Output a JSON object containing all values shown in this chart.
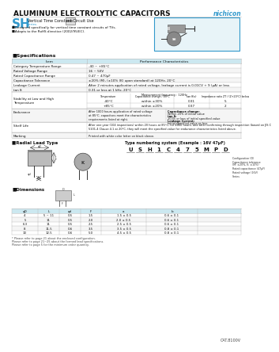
{
  "title": "ALUMINUM ELECTROLYTIC CAPACITORS",
  "brand": "nichicon",
  "series": "SH",
  "series_desc": "Vertical Time Constant Circuit Use",
  "series_sub": "series",
  "bullet1": "■Designed specifically for vertical time constant circuits of TVs.",
  "bullet2": "■Adapts to the RoHS directive (2002/95/EC).",
  "spec_title": "■Specifications",
  "spec_rows": [
    [
      "Item",
      "Performance Characteristics"
    ],
    [
      "Category Temperature Range",
      "-40 ~ +85°C"
    ],
    [
      "Rated Voltage Range",
      "16 ~ 50V"
    ],
    [
      "Rated Capacitance Range",
      "0.47 ~ 470μF"
    ],
    [
      "Capacitance Tolerance",
      "±20% (M), (±10% (K) upon standard) at 120Hz, 20°C"
    ],
    [
      "Leakage Current",
      "After 2 minutes application of rated voltage, leakage current is 0.01CV + 9 (μA) or less"
    ],
    [
      "tan δ",
      "0.31 or less at 1 kHz, 20°C"
    ]
  ],
  "stab_label": "Stability at Low and High\nTemperature",
  "stab_header": [
    "Temperature",
    "Capacitance change / 85°C",
    "tan δ(x)",
    "Impedance ratio ZT / (Z+20°C) below"
  ],
  "stab_rows": [
    [
      "-40°C",
      "within ±30%",
      "0.31",
      "5"
    ],
    [
      "+85°C",
      "within ±20%",
      "0.37",
      "2"
    ]
  ],
  "freq_note": "Measurement frequency : 120Hz",
  "end_label": "Endurance",
  "end_text": "After 1000 hours application of rated voltage\nat 85°C, capacitors meet the characteristics\nrequirements listed at right.",
  "end_right1": "Capacitance change:",
  "end_right2": "Within 20% of initial value",
  "end_right3": "tan δ:",
  "end_right4": "200% or less of initial specified value",
  "end_right5": "Leakage Current:",
  "end_right6": "Initial specified value or less",
  "shelf_label": "Shelf Life",
  "shelf_text": "After one year (104 inspections) within 20 hours at 85°C, for 4000 hours, and after confirming through inspection (based on JIS C\n5101-4 Clause 4.1 at 20°C, they will meet the specified value for endurance characteristics listed above.",
  "mark_label": "Marking",
  "mark_text": "Printed with white color letter on black sleeve.",
  "radial_title": "■Radial Lead Type",
  "type_title": "Type numbering system (Example : 16V 47μF)",
  "type_chars": [
    "U",
    "S",
    "H",
    "1",
    "C",
    "4",
    "7",
    "5",
    "M",
    "P",
    "D"
  ],
  "type_labels": [
    "",
    "",
    "Series",
    "Rated voltage (16V)",
    "",
    "Rated capacitance (47μF)",
    "",
    "",
    "Capacitance tolerance\n(M: ±20%, K: ±10%)",
    "",
    "Configuration (D)"
  ],
  "dim_title": "■Dimensions",
  "dim_headers": [
    "φD",
    "L",
    "φd",
    "F",
    "a",
    "b"
  ],
  "dim_rows": [
    [
      "4",
      "5 ~ 11",
      "0.5",
      "1.5",
      "1.5 ± 0.5",
      "0.6 ± 0.1"
    ],
    [
      "5",
      "11",
      "0.5",
      "2.0",
      "2.0 ± 0.5",
      "0.6 ± 0.1"
    ],
    [
      "6.3",
      "11",
      "0.5",
      "2.5",
      "2.5 ± 0.5",
      "0.6 ± 0.1"
    ],
    [
      "8",
      "11.5",
      "0.6",
      "3.5",
      "3.5 ± 0.5",
      "0.8 ± 0.1"
    ],
    [
      "10",
      "12.5",
      "0.6",
      "5.0",
      "4.5 ± 0.5",
      "0.8 ± 0.1"
    ]
  ],
  "foot1": "* Please refer to page 21 about the enclosed configuration.",
  "foot2": "Please refer to page 21~25 about the formed lead specifications.",
  "foot3": "Please refer to page 5 for the minimum order quantity.",
  "cat_num": "CAT.8100V",
  "blue": "#3399cc",
  "light_blue_bg": "#e8f4f8",
  "header_blue": "#cce8f0",
  "white": "#ffffff",
  "black": "#111111",
  "gray_line": "#bbbbbb",
  "light_gray": "#f5f5f5"
}
